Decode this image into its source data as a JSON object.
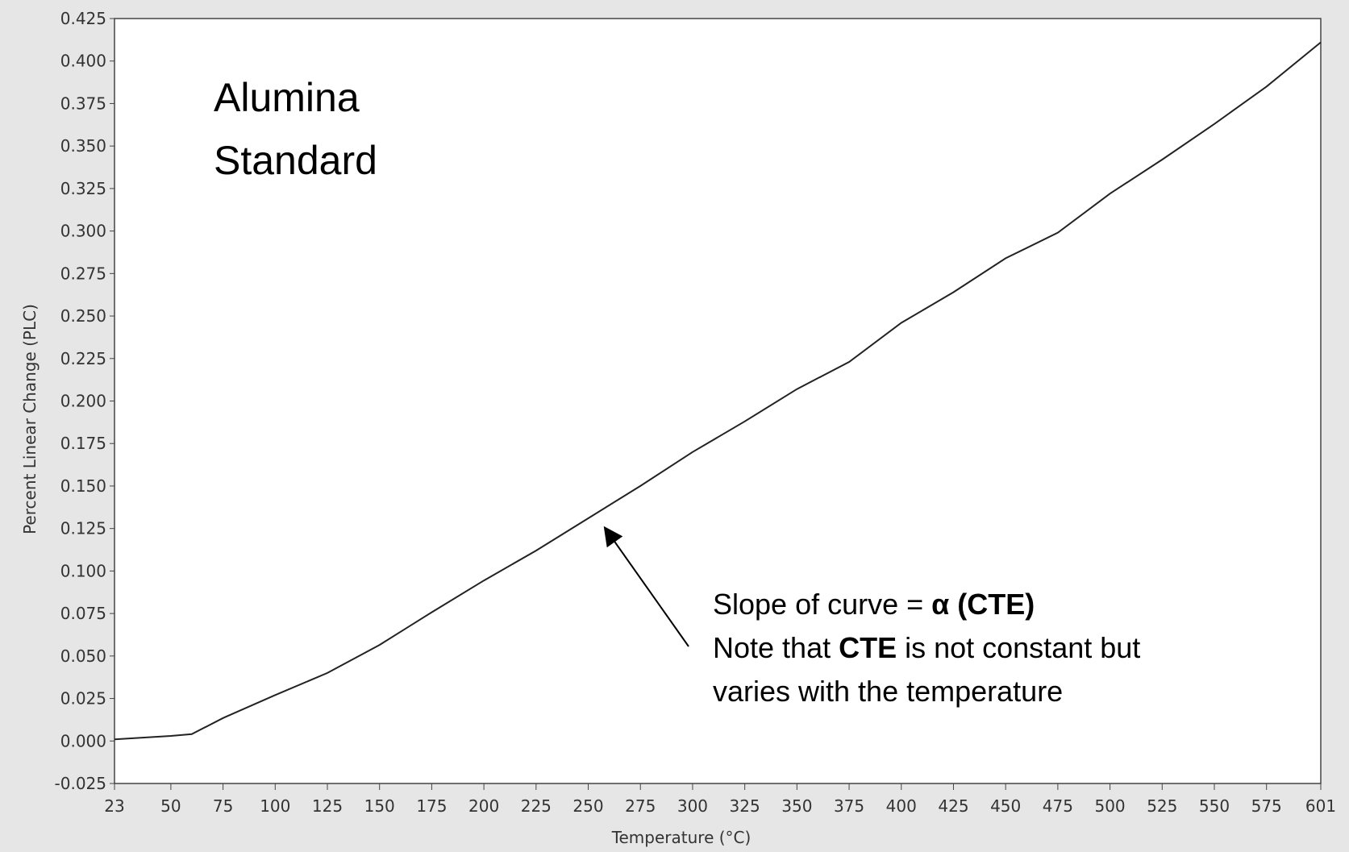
{
  "chart_data": {
    "type": "line",
    "title_lines": [
      "Alumina",
      "Standard"
    ],
    "x_label": "Temperature (°C)",
    "y_label": "Percent Linear Change (PLC)",
    "x": [
      23,
      50,
      60,
      75,
      100,
      125,
      150,
      175,
      200,
      225,
      250,
      275,
      300,
      325,
      350,
      375,
      400,
      425,
      450,
      475,
      500,
      525,
      550,
      575,
      601
    ],
    "series": [
      {
        "color": "#222222",
        "values": [
          0.001,
          0.003,
          0.004,
          0.0135,
          0.027,
          0.04,
          0.0565,
          0.0757,
          0.0944,
          0.112,
          0.131,
          0.15,
          0.17,
          0.188,
          0.207,
          0.223,
          0.246,
          0.264,
          0.284,
          0.299,
          0.322,
          0.342,
          0.363,
          0.385,
          0.411
        ]
      }
    ],
    "xlim": [
      23,
      601
    ],
    "xticks": [
      23,
      50,
      75,
      100,
      125,
      150,
      175,
      200,
      225,
      250,
      275,
      300,
      325,
      350,
      375,
      400,
      425,
      450,
      475,
      500,
      525,
      550,
      575,
      601
    ],
    "ylim": [
      -0.025,
      0.425
    ],
    "yticks": [
      -0.025,
      {
        "value": 0,
        "label": "0.000"
      },
      0.025,
      {
        "value": 0.05,
        "label": "0.050"
      },
      0.075,
      {
        "value": 0.1,
        "label": "0.100"
      },
      0.125,
      {
        "value": 0.15,
        "label": "0.150"
      },
      0.175,
      {
        "value": 0.2,
        "label": "0.200"
      },
      0.225,
      {
        "value": 0.25,
        "label": "0.250"
      },
      0.275,
      {
        "value": 0.3,
        "label": "0.300"
      },
      0.325,
      {
        "value": 0.35,
        "label": "0.350"
      },
      0.375,
      {
        "value": 0.4,
        "label": "0.400"
      },
      0.425
    ],
    "grid": false,
    "annotation": {
      "lines": [
        [
          {
            "text": "Slope of curve = "
          },
          {
            "text": "α (CTE)",
            "bold": true
          }
        ],
        [
          {
            "text": "Note that "
          },
          {
            "text": "CTE",
            "bold": true
          },
          {
            "text": " is not constant but"
          }
        ],
        [
          {
            "text": "varies with the temperature"
          }
        ]
      ]
    }
  }
}
